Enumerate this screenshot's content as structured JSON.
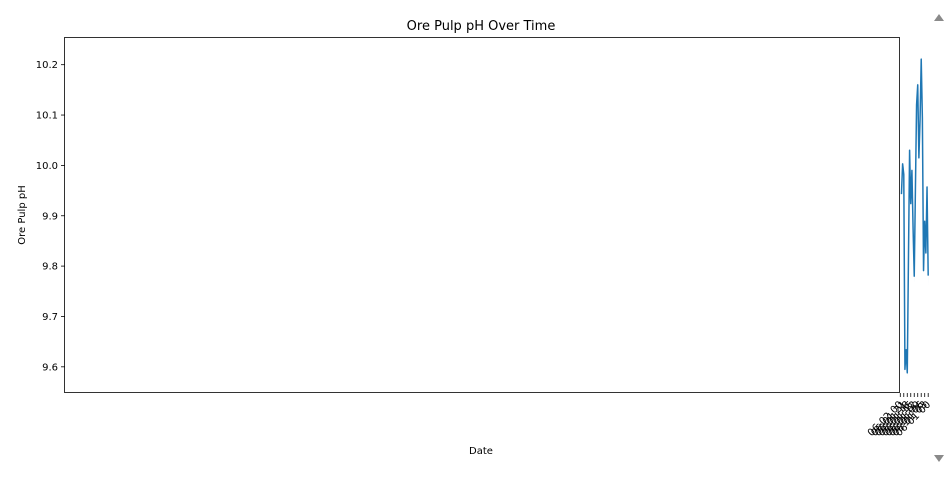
{
  "chart_data": {
    "type": "line",
    "title": "Ore Pulp pH Over Time",
    "xlabel": "Date",
    "ylabel": "Ore Pulp pH",
    "x_ticks": [
      "06-01 00",
      "06-01 03",
      "06-01 06",
      "06-01 09",
      "06-01 12",
      "06-01 15",
      "06-01 18",
      "06-01 21",
      "06-02 00"
    ],
    "y_ticks": [
      "9.6",
      "9.7",
      "9.8",
      "9.9",
      "10.0",
      "10.1",
      "10.2"
    ],
    "ylim": [
      9.548,
      10.253
    ],
    "xlim": [
      "05-31 22:30",
      "06-02 00:15"
    ],
    "series": [
      {
        "color": "#1f77b4",
        "x": [
          "06-01 00:00",
          "06-01 01:00",
          "06-01 02:00",
          "06-01 03:00",
          "06-01 04:00",
          "06-01 05:00",
          "06-01 06:00",
          "06-01 07:00",
          "06-01 08:00",
          "06-01 09:00",
          "06-01 10:00",
          "06-01 11:00",
          "06-01 12:00",
          "06-01 13:00",
          "06-01 14:00",
          "06-01 15:00",
          "06-01 16:00",
          "06-01 17:00",
          "06-01 18:00",
          "06-01 19:00",
          "06-01 20:00",
          "06-01 21:00",
          "06-01 22:00",
          "06-01 23:00"
        ],
        "y": [
          9.781,
          9.957,
          9.826,
          9.889,
          9.791,
          10.094,
          10.211,
          10.09,
          10.015,
          10.16,
          10.12,
          9.95,
          9.78,
          9.875,
          9.99,
          9.924,
          10.03,
          9.81,
          9.588,
          9.634,
          9.595,
          9.982,
          10.003,
          9.943
        ],
        "ci_lower": [
          9.762,
          9.951,
          9.82,
          9.886,
          9.784,
          10.088,
          10.204,
          10.087,
          10.013,
          10.152,
          10.113,
          9.945,
          9.768,
          9.85,
          9.983,
          9.918,
          10.028,
          9.806,
          9.58,
          9.628,
          9.588,
          9.968,
          9.998,
          9.942
        ],
        "ci_upper": [
          9.792,
          9.963,
          9.831,
          9.892,
          9.797,
          10.1,
          10.218,
          10.093,
          10.018,
          10.168,
          10.127,
          9.955,
          9.79,
          9.9,
          9.998,
          9.93,
          10.033,
          9.814,
          9.595,
          9.64,
          9.602,
          9.996,
          10.006,
          9.945
        ]
      }
    ],
    "grid": false,
    "confidence_band": true
  }
}
